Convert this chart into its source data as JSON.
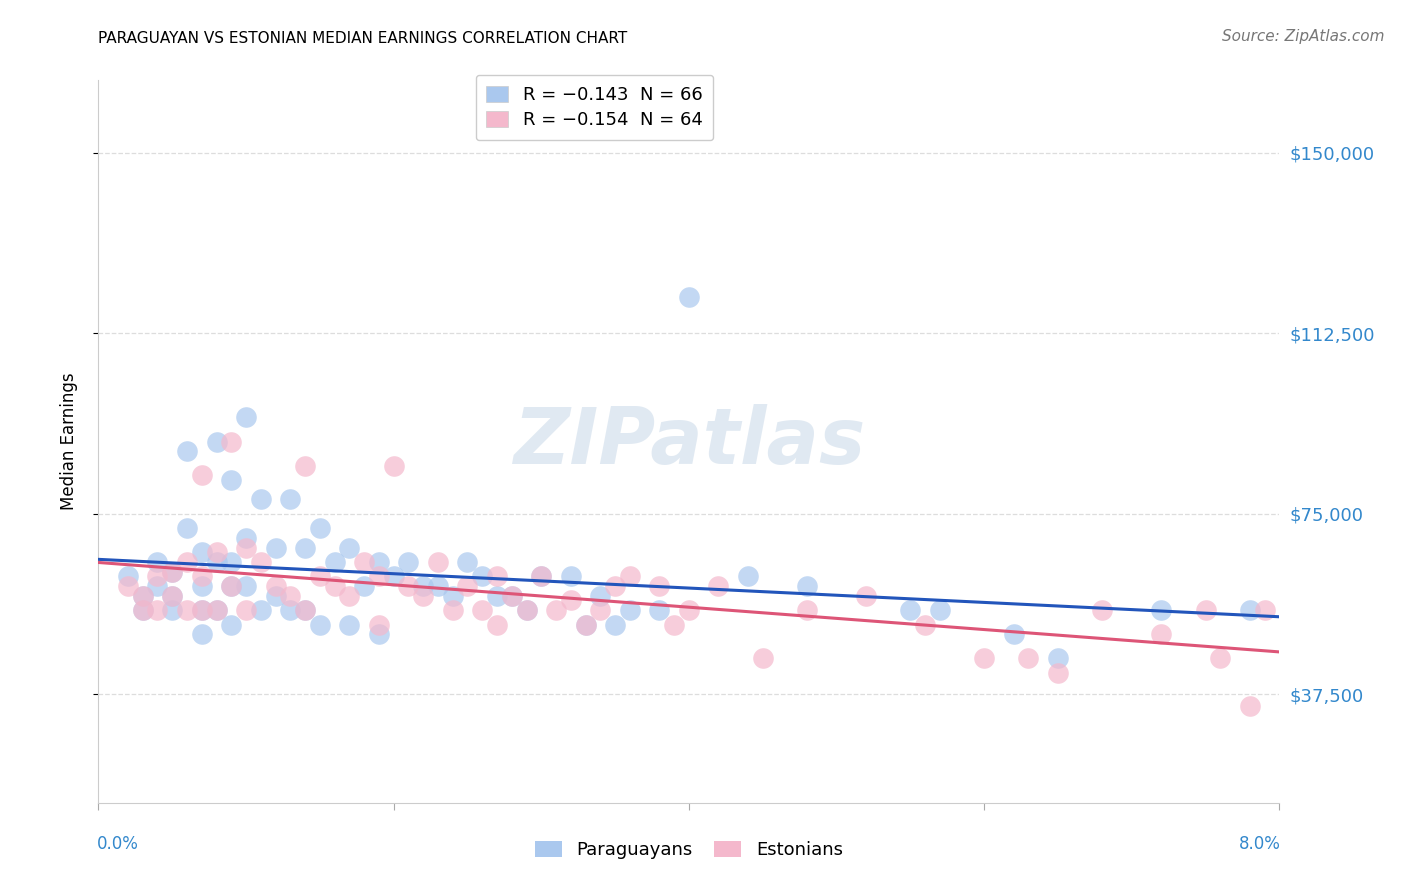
{
  "title": "PARAGUAYAN VS ESTONIAN MEDIAN EARNINGS CORRELATION CHART",
  "source": "Source: ZipAtlas.com",
  "ylabel": "Median Earnings",
  "ytick_labels": [
    "$37,500",
    "$75,000",
    "$112,500",
    "$150,000"
  ],
  "ytick_values": [
    37500,
    75000,
    112500,
    150000
  ],
  "ymin": 15000,
  "ymax": 165000,
  "xmin": 0.0,
  "xmax": 0.08,
  "legend_entries": [
    {
      "label": "R = −0.143  N = 66",
      "color": "#aac8ee"
    },
    {
      "label": "R = −0.154  N = 64",
      "color": "#f4b8cc"
    }
  ],
  "legend_bottom": [
    "Paraguayans",
    "Estonians"
  ],
  "paraguayan_color": "#aac8ee",
  "estonian_color": "#f4b8cc",
  "trendline_blue": "#2255bb",
  "trendline_pink": "#dd5577",
  "background_color": "#ffffff",
  "grid_color": "#dddddd",
  "watermark": "ZIPatlas",
  "title_fontsize": 11,
  "source_fontsize": 11,
  "ytick_color": "#3388cc",
  "xtick_color": "#3388cc",
  "paraguayan_x": [
    0.002,
    0.003,
    0.003,
    0.004,
    0.004,
    0.005,
    0.005,
    0.005,
    0.006,
    0.006,
    0.007,
    0.007,
    0.007,
    0.007,
    0.008,
    0.008,
    0.008,
    0.009,
    0.009,
    0.009,
    0.009,
    0.01,
    0.01,
    0.01,
    0.011,
    0.011,
    0.012,
    0.012,
    0.013,
    0.013,
    0.014,
    0.014,
    0.015,
    0.015,
    0.016,
    0.017,
    0.017,
    0.018,
    0.019,
    0.019,
    0.02,
    0.021,
    0.022,
    0.023,
    0.024,
    0.025,
    0.026,
    0.027,
    0.028,
    0.029,
    0.03,
    0.032,
    0.033,
    0.034,
    0.035,
    0.036,
    0.038,
    0.04,
    0.044,
    0.048,
    0.055,
    0.057,
    0.062,
    0.065,
    0.072,
    0.078
  ],
  "paraguayan_y": [
    62000,
    58000,
    55000,
    65000,
    60000,
    63000,
    58000,
    55000,
    88000,
    72000,
    67000,
    60000,
    55000,
    50000,
    90000,
    65000,
    55000,
    82000,
    65000,
    60000,
    52000,
    95000,
    70000,
    60000,
    78000,
    55000,
    68000,
    58000,
    78000,
    55000,
    68000,
    55000,
    72000,
    52000,
    65000,
    68000,
    52000,
    60000,
    65000,
    50000,
    62000,
    65000,
    60000,
    60000,
    58000,
    65000,
    62000,
    58000,
    58000,
    55000,
    62000,
    62000,
    52000,
    58000,
    52000,
    55000,
    55000,
    120000,
    62000,
    60000,
    55000,
    55000,
    50000,
    45000,
    55000,
    55000
  ],
  "estonian_x": [
    0.002,
    0.003,
    0.003,
    0.004,
    0.004,
    0.005,
    0.005,
    0.006,
    0.006,
    0.007,
    0.007,
    0.007,
    0.008,
    0.008,
    0.009,
    0.009,
    0.01,
    0.01,
    0.011,
    0.012,
    0.013,
    0.014,
    0.014,
    0.015,
    0.016,
    0.017,
    0.018,
    0.019,
    0.019,
    0.02,
    0.021,
    0.022,
    0.023,
    0.024,
    0.025,
    0.026,
    0.027,
    0.027,
    0.028,
    0.029,
    0.03,
    0.031,
    0.032,
    0.033,
    0.034,
    0.035,
    0.036,
    0.038,
    0.039,
    0.04,
    0.042,
    0.045,
    0.048,
    0.052,
    0.056,
    0.06,
    0.063,
    0.065,
    0.068,
    0.072,
    0.075,
    0.076,
    0.078,
    0.079
  ],
  "estonian_y": [
    60000,
    58000,
    55000,
    62000,
    55000,
    63000,
    58000,
    65000,
    55000,
    83000,
    62000,
    55000,
    67000,
    55000,
    90000,
    60000,
    68000,
    55000,
    65000,
    60000,
    58000,
    85000,
    55000,
    62000,
    60000,
    58000,
    65000,
    62000,
    52000,
    85000,
    60000,
    58000,
    65000,
    55000,
    60000,
    55000,
    62000,
    52000,
    58000,
    55000,
    62000,
    55000,
    57000,
    52000,
    55000,
    60000,
    62000,
    60000,
    52000,
    55000,
    60000,
    45000,
    55000,
    58000,
    52000,
    45000,
    45000,
    42000,
    55000,
    50000,
    55000,
    45000,
    35000,
    55000
  ]
}
